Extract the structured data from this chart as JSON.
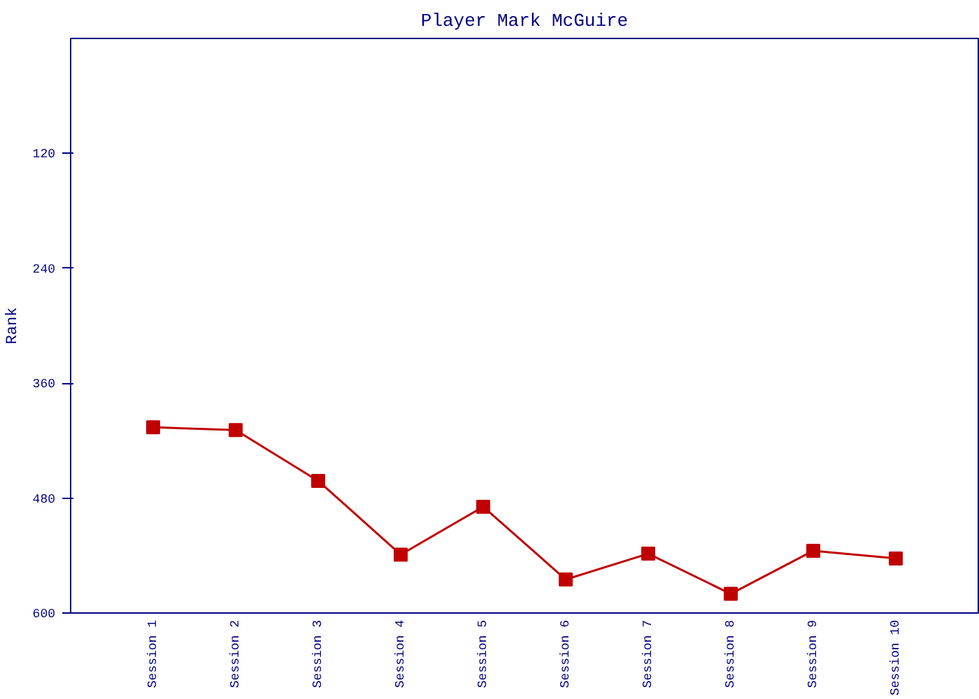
{
  "chart_data": {
    "type": "line",
    "title": "Player Mark McGuire",
    "ylabel": "Rank",
    "categories": [
      "Session 1",
      "Session 2",
      "Session 3",
      "Session 4",
      "Session 5",
      "Session 6",
      "Session 7",
      "Session 8",
      "Session 9",
      "Session 10"
    ],
    "series": [
      {
        "color": "#c00000",
        "values": [
          406,
          409,
          462,
          539,
          489,
          565,
          538,
          580,
          535,
          543
        ]
      }
    ],
    "ylim": [
      600,
      0
    ],
    "yticks": [
      120,
      240,
      360,
      480,
      600
    ],
    "grid": false,
    "marker": "square",
    "line_style": "solid"
  }
}
